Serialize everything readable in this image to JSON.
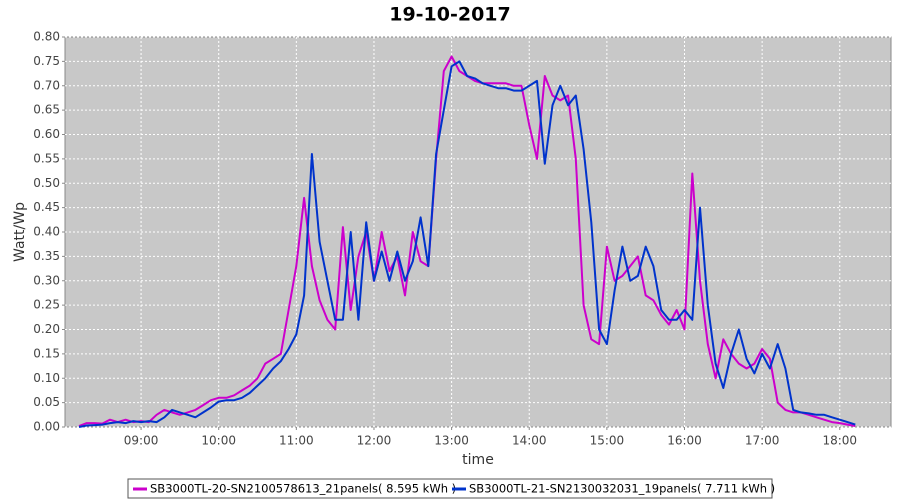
{
  "chart_data": {
    "type": "line",
    "title": "19-10-2017",
    "x_label": "time",
    "y_label": "Watt/Wp",
    "x": [
      8.2,
      8.3,
      8.4,
      8.5,
      8.6,
      8.7,
      8.8,
      8.9,
      9.0,
      9.1,
      9.2,
      9.3,
      9.4,
      9.5,
      9.6,
      9.7,
      9.8,
      9.9,
      10.0,
      10.1,
      10.2,
      10.3,
      10.4,
      10.5,
      10.6,
      10.7,
      10.8,
      10.9,
      11.0,
      11.1,
      11.2,
      11.3,
      11.4,
      11.5,
      11.6,
      11.7,
      11.8,
      11.9,
      12.0,
      12.1,
      12.2,
      12.3,
      12.4,
      12.5,
      12.6,
      12.7,
      12.8,
      12.9,
      13.0,
      13.1,
      13.2,
      13.3,
      13.4,
      13.5,
      13.6,
      13.7,
      13.8,
      13.9,
      14.0,
      14.1,
      14.2,
      14.3,
      14.4,
      14.5,
      14.6,
      14.7,
      14.8,
      14.9,
      15.0,
      15.1,
      15.2,
      15.3,
      15.4,
      15.5,
      15.6,
      15.7,
      15.8,
      15.9,
      16.0,
      16.1,
      16.2,
      16.3,
      16.4,
      16.5,
      16.6,
      16.7,
      16.8,
      16.9,
      17.0,
      17.1,
      17.2,
      17.3,
      17.4,
      17.5,
      17.6,
      17.7,
      17.8,
      17.9,
      18.0,
      18.1,
      18.2
    ],
    "series": [
      {
        "name": "SB3000TL-20-SN2100578613_21panels( 8.595 kWh )",
        "color": "#cc00cc",
        "values": [
          0.002,
          0.008,
          0.008,
          0.007,
          0.015,
          0.01,
          0.015,
          0.01,
          0.012,
          0.01,
          0.025,
          0.035,
          0.03,
          0.025,
          0.03,
          0.035,
          0.045,
          0.055,
          0.06,
          0.06,
          0.065,
          0.075,
          0.085,
          0.1,
          0.13,
          0.14,
          0.15,
          0.24,
          0.33,
          0.47,
          0.33,
          0.26,
          0.22,
          0.2,
          0.41,
          0.24,
          0.35,
          0.4,
          0.3,
          0.4,
          0.32,
          0.35,
          0.27,
          0.4,
          0.34,
          0.33,
          0.55,
          0.73,
          0.76,
          0.73,
          0.72,
          0.71,
          0.705,
          0.705,
          0.705,
          0.705,
          0.7,
          0.7,
          0.62,
          0.55,
          0.72,
          0.68,
          0.67,
          0.68,
          0.55,
          0.25,
          0.18,
          0.17,
          0.37,
          0.3,
          0.31,
          0.33,
          0.35,
          0.27,
          0.26,
          0.23,
          0.21,
          0.24,
          0.2,
          0.52,
          0.3,
          0.17,
          0.1,
          0.18,
          0.15,
          0.13,
          0.12,
          0.13,
          0.16,
          0.14,
          0.05,
          0.035,
          0.03,
          0.03,
          0.025,
          0.02,
          0.015,
          0.01,
          0.008,
          0.005,
          0.002
        ]
      },
      {
        "name": "SB3000TL-21-SN2130032031_19panels( 7.711 kWh )",
        "color": "#0033cc",
        "values": [
          0.0,
          0.003,
          0.004,
          0.005,
          0.008,
          0.01,
          0.008,
          0.012,
          0.01,
          0.012,
          0.01,
          0.02,
          0.035,
          0.03,
          0.025,
          0.02,
          0.03,
          0.04,
          0.052,
          0.055,
          0.055,
          0.06,
          0.07,
          0.085,
          0.1,
          0.12,
          0.135,
          0.16,
          0.19,
          0.27,
          0.56,
          0.38,
          0.3,
          0.22,
          0.22,
          0.4,
          0.22,
          0.42,
          0.3,
          0.36,
          0.3,
          0.36,
          0.3,
          0.34,
          0.43,
          0.33,
          0.56,
          0.65,
          0.74,
          0.75,
          0.72,
          0.715,
          0.705,
          0.7,
          0.695,
          0.695,
          0.69,
          0.69,
          0.7,
          0.71,
          0.54,
          0.66,
          0.7,
          0.66,
          0.68,
          0.57,
          0.42,
          0.2,
          0.17,
          0.28,
          0.37,
          0.3,
          0.31,
          0.37,
          0.33,
          0.24,
          0.22,
          0.22,
          0.24,
          0.22,
          0.45,
          0.25,
          0.13,
          0.08,
          0.15,
          0.2,
          0.14,
          0.11,
          0.15,
          0.12,
          0.17,
          0.12,
          0.035,
          0.03,
          0.028,
          0.025,
          0.025,
          0.02,
          0.015,
          0.01,
          0.005
        ]
      }
    ],
    "xlim": [
      8.02,
      18.66
    ],
    "xticks": [
      {
        "value": 9,
        "label": "09:00"
      },
      {
        "value": 10,
        "label": "10:00"
      },
      {
        "value": 11,
        "label": "11:00"
      },
      {
        "value": 12,
        "label": "12:00"
      },
      {
        "value": 13,
        "label": "13:00"
      },
      {
        "value": 14,
        "label": "14:00"
      },
      {
        "value": 15,
        "label": "15:00"
      },
      {
        "value": 16,
        "label": "16:00"
      },
      {
        "value": 17,
        "label": "17:00"
      },
      {
        "value": 18,
        "label": "18:00"
      }
    ],
    "ylim": [
      0,
      0.8
    ],
    "yticks": [
      {
        "value": 0,
        "label": "0.00"
      },
      {
        "value": 0.05,
        "label": "0.05"
      },
      {
        "value": 0.1,
        "label": "0.10"
      },
      {
        "value": 0.15,
        "label": "0.15"
      },
      {
        "value": 0.2,
        "label": "0.20"
      },
      {
        "value": 0.25,
        "label": "0.25"
      },
      {
        "value": 0.3,
        "label": "0.30"
      },
      {
        "value": 0.35,
        "label": "0.35"
      },
      {
        "value": 0.4,
        "label": "0.40"
      },
      {
        "value": 0.45,
        "label": "0.45"
      },
      {
        "value": 0.5,
        "label": "0.50"
      },
      {
        "value": 0.55,
        "label": "0.55"
      },
      {
        "value": 0.6,
        "label": "0.60"
      },
      {
        "value": 0.65,
        "label": "0.65"
      },
      {
        "value": 0.7,
        "label": "0.70"
      },
      {
        "value": 0.75,
        "label": "0.75"
      },
      {
        "value": 0.8,
        "label": "0.80"
      }
    ],
    "grid": true
  }
}
